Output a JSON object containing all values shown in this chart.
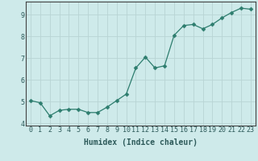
{
  "x": [
    0,
    1,
    2,
    3,
    4,
    5,
    6,
    7,
    8,
    9,
    10,
    11,
    12,
    13,
    14,
    15,
    16,
    17,
    18,
    19,
    20,
    21,
    22,
    23
  ],
  "y": [
    5.05,
    4.95,
    4.35,
    4.6,
    4.65,
    4.65,
    4.5,
    4.5,
    4.75,
    5.05,
    5.35,
    6.55,
    7.05,
    6.55,
    6.65,
    8.05,
    8.5,
    8.55,
    8.35,
    8.55,
    8.85,
    9.1,
    9.3,
    9.25
  ],
  "line_color": "#2d7d6e",
  "marker": "D",
  "marker_size": 2.5,
  "bg_color": "#ceeaea",
  "grid_color": "#b8d4d4",
  "axis_bg": "#ceeaea",
  "xlabel": "Humidex (Indice chaleur)",
  "xlim": [
    -0.5,
    23.5
  ],
  "ylim": [
    3.9,
    9.6
  ],
  "yticks": [
    4,
    5,
    6,
    7,
    8,
    9
  ],
  "xtick_labels": [
    "0",
    "1",
    "2",
    "3",
    "4",
    "5",
    "6",
    "7",
    "8",
    "9",
    "10",
    "11",
    "12",
    "13",
    "14",
    "15",
    "16",
    "17",
    "18",
    "19",
    "20",
    "21",
    "22",
    "23"
  ],
  "xlabel_fontsize": 7.0,
  "tick_fontsize": 6.0,
  "spine_color": "#444444"
}
